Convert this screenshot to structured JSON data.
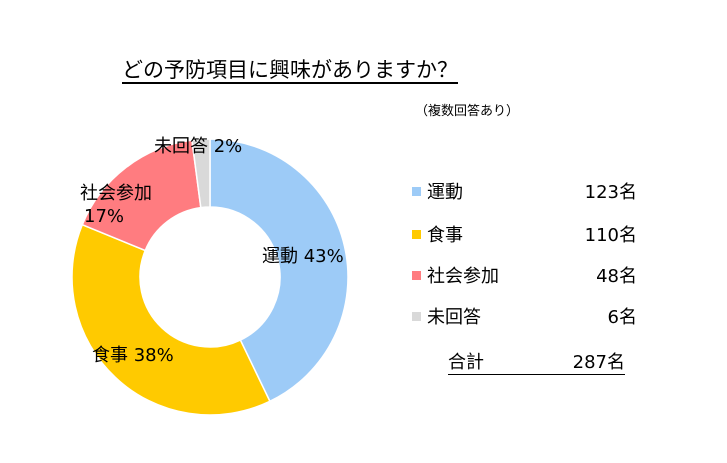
{
  "title": "どの予防項目に興味がありますか？",
  "note": "（複数回答あり）",
  "chart_data": {
    "type": "pie",
    "donut": true,
    "title": "どの予防項目に興味がありますか？",
    "subtitle": "（複数回答あり）",
    "unit": "名",
    "slices": [
      {
        "name": "運動",
        "value": 123,
        "percent_label": "43%",
        "color": "#9DCBF7"
      },
      {
        "name": "食事",
        "value": 110,
        "percent_label": "38%",
        "color": "#FFCA00"
      },
      {
        "name": "社会参加",
        "value": 48,
        "percent_label": "17%",
        "color": "#FF7C80"
      },
      {
        "name": "未回答",
        "value": 6,
        "percent_label": "2%",
        "color": "#D9D9D9"
      }
    ],
    "legend": [
      {
        "name": "運動",
        "count": "123名",
        "color": "#9DCBF7"
      },
      {
        "name": "食事",
        "count": "110名",
        "color": "#FFCA00"
      },
      {
        "name": "社会参加",
        "count": "48名",
        "color": "#FF7C80"
      },
      {
        "name": "未回答",
        "count": "6名",
        "color": "#D9D9D9"
      }
    ],
    "total": {
      "label": "合計",
      "value": "287名"
    },
    "legend_position": "right"
  }
}
